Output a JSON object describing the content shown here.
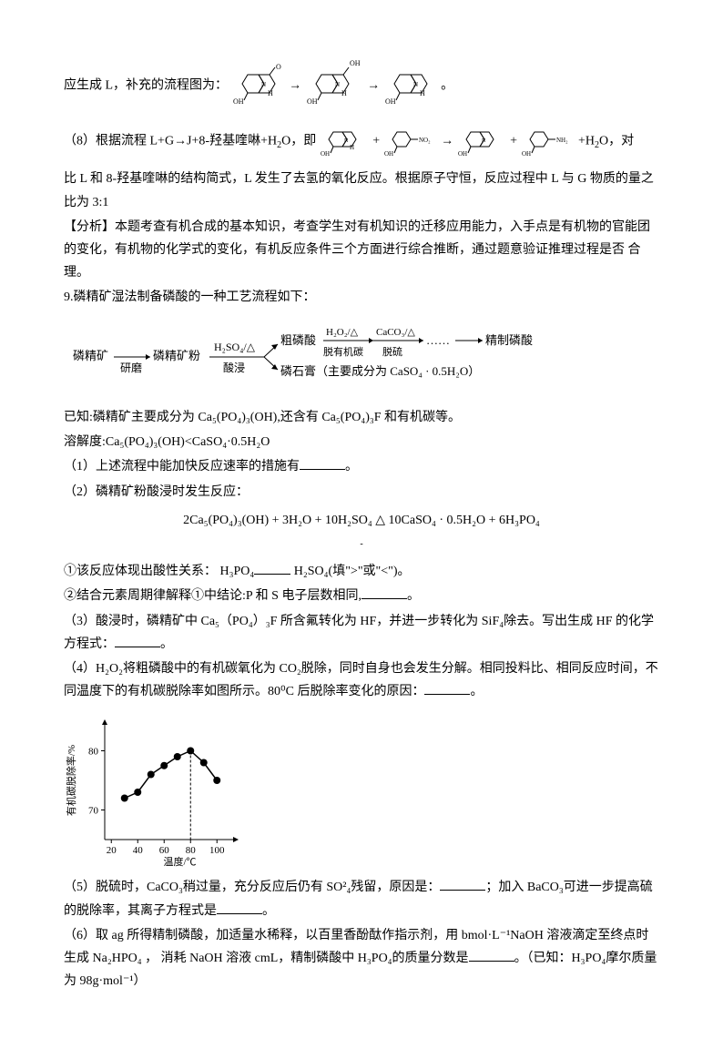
{
  "p1_prefix": "应生成 L，补充的流程图为：",
  "mol_arrow": "→",
  "mol_end": "。",
  "p2_prefix": "（8）根据流程 L+G→J+8-羟基喹啉+H",
  "p2_mid1": "O，即 ",
  "p2_plus": " + ",
  "p2_mid2": " → ",
  "p2_suffix": " +H",
  "p2_end": "O，对",
  "p3": "比 L 和 8-羟基喹啉的结构简式，L 发生了去氢的氧化反应。根据原子守恒，反应过程中 L 与 G 物质的量之比为 3:1",
  "p4": "【分析】本题考查有机合成的基本知识，考查学生对有机知识的迁移应用能力，入手点是有机物的官能团的变化，有机物的化学式的变化，有机反应条件三个方面进行综合推断，通过题意验证推理过程是否 合理。",
  "p5": "9.磷精矿湿法制备磷酸的一种工艺流程如下：",
  "flow": {
    "n1": "磷精矿",
    "a1": "研磨",
    "n2": "磷精矿粉",
    "a2_top": "H₂SO₄/△",
    "a2_bot": "酸浸",
    "n3_top": "粗磷酸",
    "a3_top_t": "H₂O₂/△",
    "a3_top_b": "脱有机碳",
    "a4_top_t": "CaCO₃/△",
    "a4_top_b": "脱硫",
    "n4_top": "精制磷酸",
    "n3_bot": "磷石膏（主要成分为 CaSO₄ · 0.5H₂O）",
    "dots": "……"
  },
  "p6": "已知:磷精矿主要成分为 Ca₅(PO₄)₃(OH),还含有 Ca₅(PO₄)₃F 和有机碳等。",
  "p7": "溶解度:Ca₅(PO₄)₃(OH)<CaSO₄·0.5H₂O",
  "p8": "（1）上述流程中能加快反应速率的措施有",
  "p8_end": "。",
  "p9": "（2）磷精矿粉酸浸时发生反应：",
  "eq1": "2Ca₅(PO₄)₃(OH) + 3H₂O + 10H₂SO₄ △ 10CaSO₄ · 0.5H₂O + 6H₃PO₄",
  "eq1_sub": "-",
  "p10_a": "①该反应体现出酸性关系： H₃PO₄",
  "p10_b": " H₂SO₄(填\">\"或\"<\")。",
  "p11": "②结合元素周期律解释①中结论:P 和 S 电子层数相同,",
  "p11_end": "。",
  "p12": "（3）酸浸时，磷精矿中 Ca₅（PO₄）₃F 所含氟转化为 HF，并进一步转化为 SiF₄除去。写出生成 HF 的化学方程式：",
  "p12_end": "。",
  "p13": "（4）H₂O₂将粗磷酸中的有机碳氧化为 CO₂脱除，同时自身也会发生分解。相同投料比、相同反应时间，不同温度下的有机碳脱除率如图所示。80⁰C 后脱除率变化的原因：",
  "p13_end": "。",
  "chart": {
    "ylabel": "有机碳脱除率/%",
    "xlabel": "温度/℃",
    "xticks": [
      20,
      40,
      60,
      80,
      100
    ],
    "yticks": [
      70,
      80
    ],
    "xlim": [
      15,
      115
    ],
    "ylim": [
      65,
      85
    ],
    "data_x": [
      30,
      40,
      50,
      60,
      70,
      80,
      90,
      100
    ],
    "data_y": [
      72,
      73,
      76,
      77.5,
      79,
      80,
      78,
      75
    ],
    "line_color": "#000000",
    "marker_color": "#000000",
    "marker_size": 4,
    "peak_x": 80,
    "axis_color": "#000000",
    "font_size": 11
  },
  "p14": "（5）脱硫时，CaCO₃稍过量，充分反应后仍有 SO²₄残留，原因是：",
  "p14_mid": "；加入 BaCO₃可进一步提高硫的脱除率，其离子方程式是",
  "p14_end": "。",
  "p15": "（6）取 ag 所得精制磷酸，加适量水稀释，以百里香酚酞作指示剂，用 bmol·L⁻¹NaOH 溶液滴定至终点时生成 Na₂HPO₄   ， 消耗 NaOH 溶液 cmL，精制磷酸中 H₃PO₄的质量分数是",
  "p15_end": "。（已知：H₃PO₄摩尔质量为 98g·mol⁻¹）"
}
